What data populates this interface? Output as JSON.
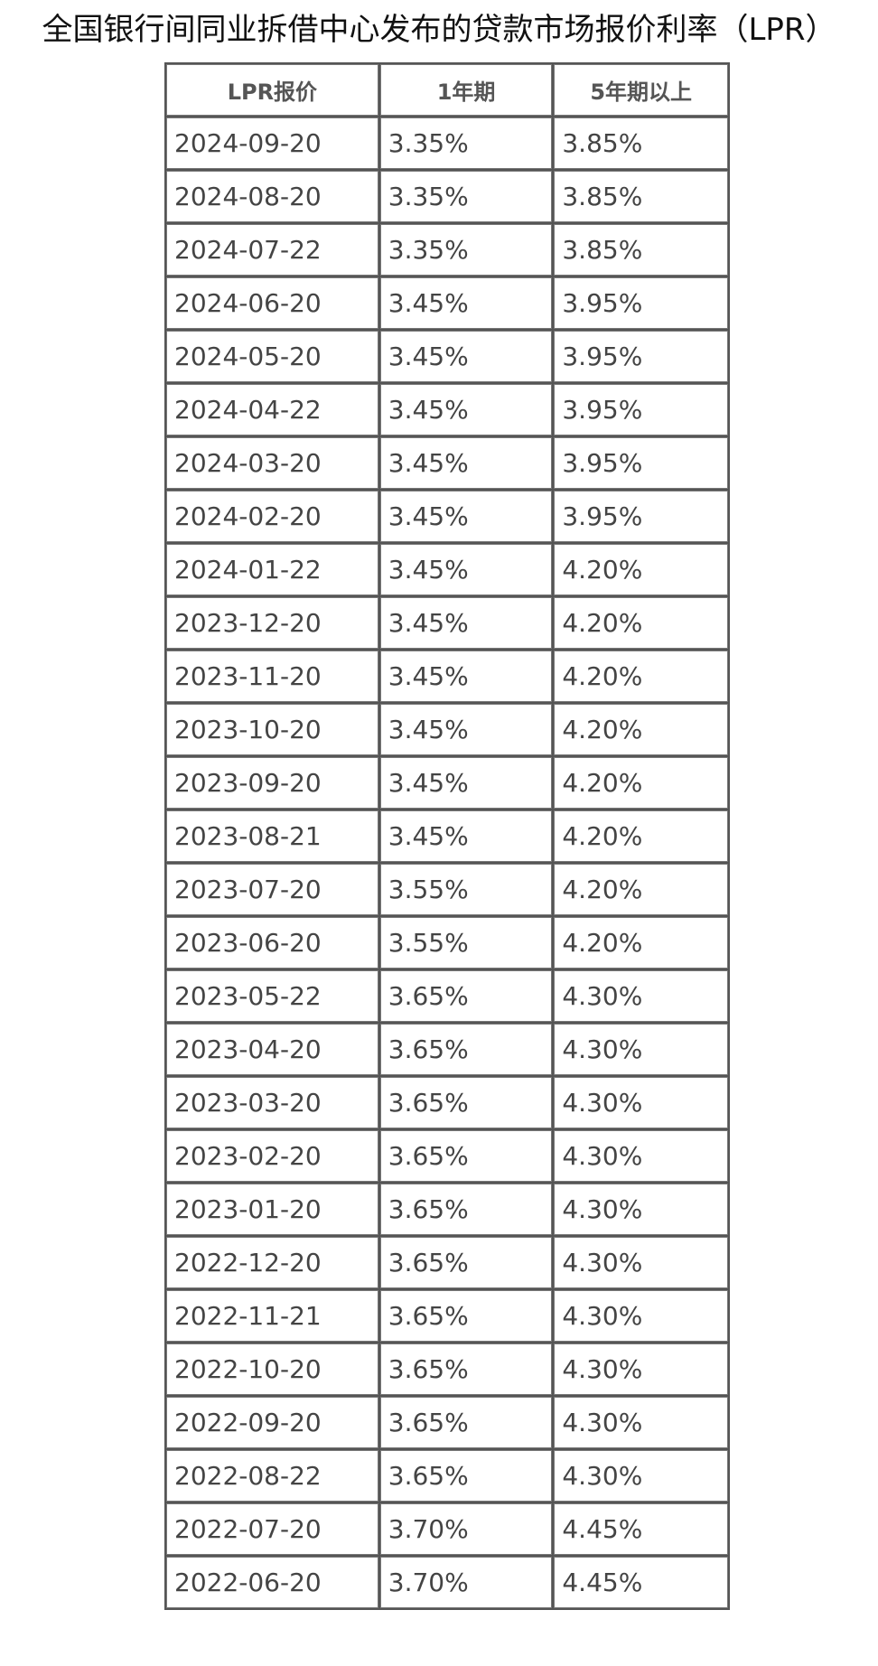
{
  "title": "全国银行间同业拆借中心发布的贷款市场报价利率（LPR）",
  "table": {
    "headers": [
      "LPR报价",
      "1年期",
      "5年期以上"
    ],
    "rows": [
      [
        "2024-09-20",
        "3.35%",
        "3.85%"
      ],
      [
        "2024-08-20",
        "3.35%",
        "3.85%"
      ],
      [
        "2024-07-22",
        "3.35%",
        "3.85%"
      ],
      [
        "2024-06-20",
        "3.45%",
        "3.95%"
      ],
      [
        "2024-05-20",
        "3.45%",
        "3.95%"
      ],
      [
        "2024-04-22",
        "3.45%",
        "3.95%"
      ],
      [
        "2024-03-20",
        "3.45%",
        "3.95%"
      ],
      [
        "2024-02-20",
        "3.45%",
        "3.95%"
      ],
      [
        "2024-01-22",
        "3.45%",
        "4.20%"
      ],
      [
        "2023-12-20",
        "3.45%",
        "4.20%"
      ],
      [
        "2023-11-20",
        "3.45%",
        "4.20%"
      ],
      [
        "2023-10-20",
        "3.45%",
        "4.20%"
      ],
      [
        "2023-09-20",
        "3.45%",
        "4.20%"
      ],
      [
        "2023-08-21",
        "3.45%",
        "4.20%"
      ],
      [
        "2023-07-20",
        "3.55%",
        "4.20%"
      ],
      [
        "2023-06-20",
        "3.55%",
        "4.20%"
      ],
      [
        "2023-05-22",
        "3.65%",
        "4.30%"
      ],
      [
        "2023-04-20",
        "3.65%",
        "4.30%"
      ],
      [
        "2023-03-20",
        "3.65%",
        "4.30%"
      ],
      [
        "2023-02-20",
        "3.65%",
        "4.30%"
      ],
      [
        "2023-01-20",
        "3.65%",
        "4.30%"
      ],
      [
        "2022-12-20",
        "3.65%",
        "4.30%"
      ],
      [
        "2022-11-21",
        "3.65%",
        "4.30%"
      ],
      [
        "2022-10-20",
        "3.65%",
        "4.30%"
      ],
      [
        "2022-09-20",
        "3.65%",
        "4.30%"
      ],
      [
        "2022-08-22",
        "3.65%",
        "4.30%"
      ],
      [
        "2022-07-20",
        "3.70%",
        "4.45%"
      ],
      [
        "2022-06-20",
        "3.70%",
        "4.45%"
      ]
    ]
  }
}
